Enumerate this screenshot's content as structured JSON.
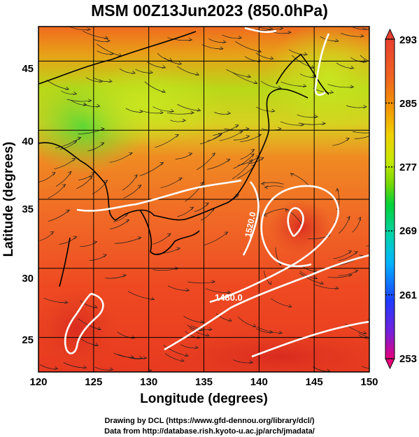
{
  "title": "MSM 00Z13Jun2023 (850.0hPa)",
  "map": {
    "xlabel": "Longitude (degrees)",
    "ylabel": "Latitude  (degrees)",
    "x_ticks": [
      "120",
      "125",
      "130",
      "135",
      "140",
      "145",
      "150"
    ],
    "y_ticks": [
      "25",
      "30",
      "35",
      "40",
      "45"
    ],
    "lon_range": [
      120,
      150
    ],
    "lat_range": [
      22.5,
      47.5
    ],
    "contour_labels": [
      "1480.0",
      "1520.0"
    ]
  },
  "colorbar": {
    "ticks": [
      "293",
      "285",
      "277",
      "269",
      "261",
      "253"
    ],
    "range": [
      253,
      293
    ],
    "colors": [
      "#e8007a",
      "#7a1fd8",
      "#1e3cff",
      "#00b4ff",
      "#00d2b4",
      "#00d23c",
      "#7ad800",
      "#c8e800",
      "#f0d000",
      "#f29a00",
      "#f06420",
      "#e84030"
    ]
  },
  "credits": {
    "line1": "Drawing by DCL (https://www.gfd-dennou.org/library/dcl/)",
    "line2": "Data from http://database.rish.kyoto-u.ac.jp/arch/jmadata/"
  }
}
